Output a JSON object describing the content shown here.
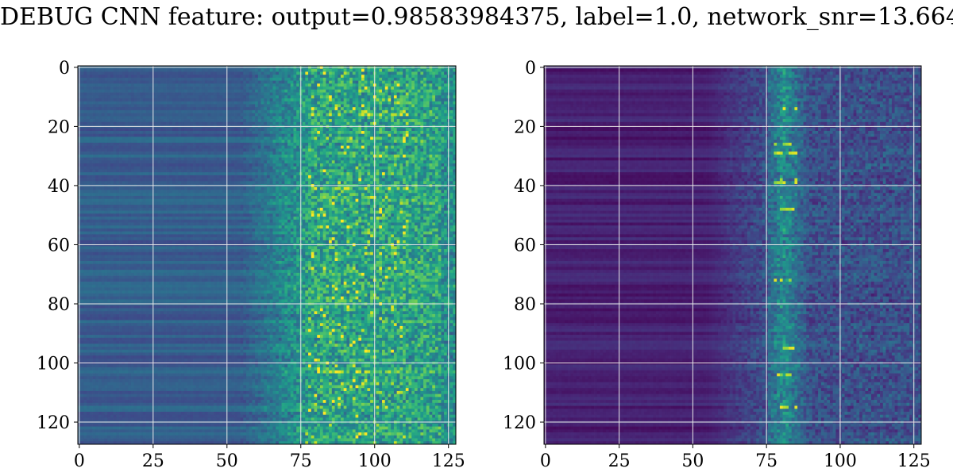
{
  "figure_title": "DEBUG CNN feature: output=0.98583984375, label=1.0, network_snr=13.664",
  "chart_data": [
    {
      "type": "heatmap",
      "colormap": "viridis",
      "rows": 128,
      "cols": 128,
      "xlim": [
        0,
        127
      ],
      "ylim": [
        127,
        0
      ],
      "xticks": [
        0,
        25,
        50,
        75,
        100,
        125
      ],
      "yticks": [
        0,
        20,
        40,
        60,
        80,
        100,
        120
      ],
      "grid": true,
      "pattern": "columns 0-55 smooth horizontal bands at low-mid values; columns 55-128 noisy; bright cells concentrated near x 78-110, strongest rows near 61-68 and 103",
      "peak_rows": [
        11,
        16,
        41,
        44,
        61,
        63,
        68,
        78,
        103
      ],
      "peak_cols": [
        80,
        90,
        92,
        95,
        106
      ]
    },
    {
      "type": "heatmap",
      "colormap": "viridis",
      "rows": 128,
      "cols": 128,
      "xlim": [
        0,
        127
      ],
      "ylim": [
        127,
        0
      ],
      "xticks": [
        0,
        25,
        50,
        75,
        100,
        125
      ],
      "yticks": [
        0,
        20,
        40,
        60,
        80,
        100,
        120
      ],
      "grid": true,
      "pattern": "mostly dark purple; bright vertical feature concentrated around columns 76-88 across all rows",
      "peak_rows": [
        14,
        26,
        29,
        38,
        39,
        48,
        72,
        95,
        104,
        115
      ],
      "peak_cols": [
        78,
        80,
        82,
        84
      ]
    }
  ]
}
